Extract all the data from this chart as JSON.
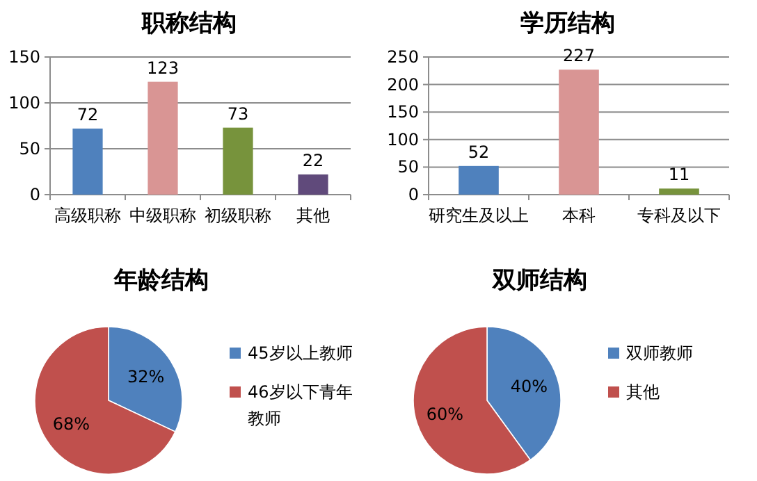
{
  "chart_data": [
    {
      "type": "bar",
      "title": "职称结构",
      "categories": [
        "高级职称",
        "中级职称",
        "初级职称",
        "其他"
      ],
      "values": [
        72,
        123,
        73,
        22
      ],
      "colors": [
        "#4f81bd",
        "#d99594",
        "#77933c",
        "#604a7b"
      ],
      "ylim": [
        0,
        150
      ],
      "yticks": [
        0,
        50,
        100,
        150
      ],
      "grid": "y",
      "data_labels": true
    },
    {
      "type": "bar",
      "title": "学历结构",
      "categories": [
        "研究生及以上",
        "本科",
        "专科及以下"
      ],
      "values": [
        52,
        227,
        11
      ],
      "colors": [
        "#4f81bd",
        "#d99594",
        "#77933c"
      ],
      "ylim": [
        0,
        250
      ],
      "yticks": [
        0,
        50,
        100,
        150,
        200,
        250
      ],
      "grid": "y",
      "data_labels": true
    },
    {
      "type": "pie",
      "title": "年龄结构",
      "categories": [
        "45岁以上教师",
        "46岁以下青年教师"
      ],
      "values": [
        32,
        68
      ],
      "value_labels": [
        "32%",
        "68%"
      ],
      "colors": [
        "#4f81bd",
        "#c0504d"
      ],
      "legend": "right"
    },
    {
      "type": "pie",
      "title": "双师结构",
      "categories": [
        "双师教师",
        "其他"
      ],
      "values": [
        40,
        60
      ],
      "value_labels": [
        "40%",
        "60%"
      ],
      "colors": [
        "#4f81bd",
        "#c0504d"
      ],
      "legend": "right"
    }
  ]
}
